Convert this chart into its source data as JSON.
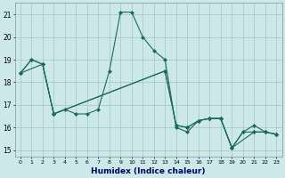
{
  "title": "",
  "xlabel": "Humidex (Indice chaleur)",
  "bg_color": "#cce8e8",
  "grid_color": "#aacccc",
  "line_color": "#1a6b5a",
  "xlim": [
    -0.5,
    23.5
  ],
  "ylim": [
    14.7,
    21.5
  ],
  "yticks": [
    15,
    16,
    17,
    18,
    19,
    20,
    21
  ],
  "xticks": [
    0,
    1,
    2,
    3,
    4,
    5,
    6,
    7,
    8,
    9,
    10,
    11,
    12,
    13,
    14,
    15,
    16,
    17,
    18,
    19,
    20,
    21,
    22,
    23
  ],
  "series": [
    {
      "x": [
        0,
        1,
        2,
        3,
        4,
        5,
        6,
        7,
        8,
        9,
        10,
        11,
        12,
        13,
        14,
        15,
        16,
        17,
        18,
        19,
        20,
        21,
        22,
        23
      ],
      "y": [
        18.4,
        19.0,
        18.8,
        16.6,
        16.8,
        16.6,
        16.6,
        16.8,
        18.5,
        21.1,
        21.1,
        20.0,
        19.4,
        19.0,
        16.0,
        15.8,
        16.3,
        16.4,
        16.4,
        15.1,
        15.8,
        16.1,
        15.8,
        15.7
      ]
    },
    {
      "x": [
        0,
        2,
        3,
        13,
        14,
        15,
        16,
        17,
        18,
        19,
        20,
        21,
        22,
        23
      ],
      "y": [
        18.4,
        18.8,
        16.6,
        18.5,
        16.1,
        16.0,
        16.3,
        16.4,
        16.4,
        15.1,
        15.8,
        15.8,
        15.8,
        15.7
      ]
    },
    {
      "x": [
        0,
        1,
        2,
        3,
        13,
        14,
        15,
        16,
        17,
        18,
        19,
        21,
        22,
        23
      ],
      "y": [
        18.4,
        19.0,
        18.8,
        16.6,
        18.5,
        16.1,
        16.0,
        16.3,
        16.4,
        16.4,
        15.1,
        15.8,
        15.8,
        15.7
      ]
    }
  ]
}
